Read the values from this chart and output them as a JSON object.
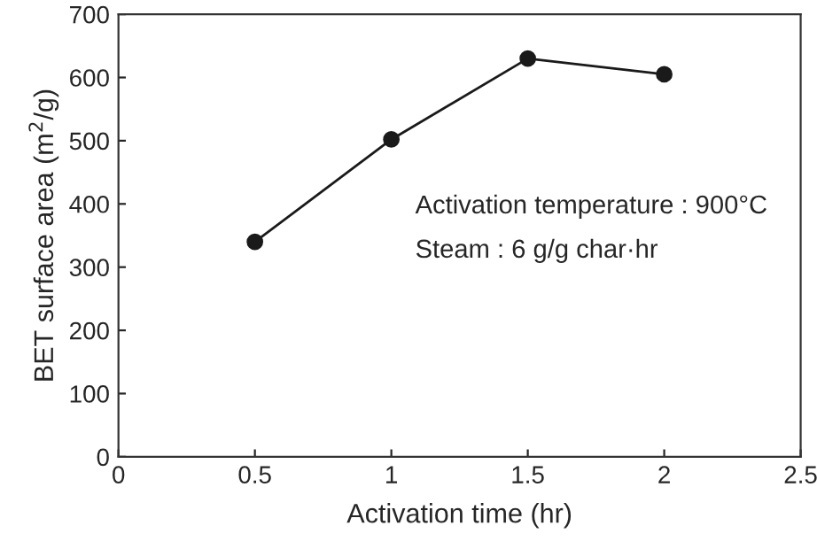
{
  "chart_data": {
    "type": "line",
    "xlabel": "Activation time (hr)",
    "ylabel": "BET surface area (m$^{2}$/g)",
    "x": [
      0.5,
      1,
      1.5,
      2
    ],
    "series": [
      {
        "color": "#1a1a1a",
        "values": [
          340,
          502,
          630,
          605
        ]
      }
    ],
    "xlim": [
      0,
      2.5
    ],
    "xticks": [
      0,
      0.5,
      1,
      1.5,
      2,
      2.5
    ],
    "ylim": [
      0,
      700
    ],
    "yticks": [
      0,
      100,
      200,
      300,
      400,
      500,
      600,
      700
    ],
    "grid": false,
    "marker": "circle",
    "line_style": "solid",
    "annotations": [
      "Activation temperature : 900°C",
      "Steam : 6 g/g char·hr"
    ]
  }
}
